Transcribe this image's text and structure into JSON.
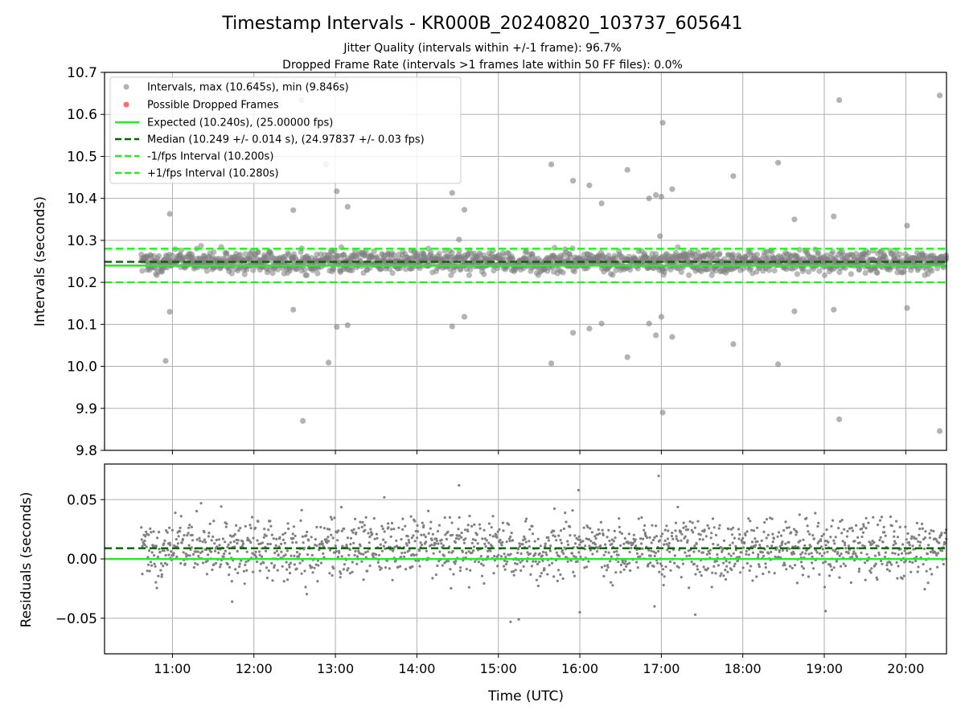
{
  "title": "Timestamp Intervals - KR000B_20240820_103737_605641",
  "subtitle_1": "Jitter Quality (intervals within +/-1 frame): 96.7%",
  "subtitle_2": "Dropped Frame Rate (intervals >1 frames late within 50 FF files): 0.0%",
  "colors": {
    "points": "#808080",
    "dropped": "#ff6060",
    "expected": "#22ee22",
    "median": "#006400",
    "fps_bounds": "#22ee22",
    "grid": "#b0b0b0"
  },
  "legend": {
    "intervals": "Intervals, max (10.645s), min (9.846s)",
    "dropped": "Possible Dropped Frames",
    "expected": "Expected (10.240s), (25.00000 fps)",
    "median": "Median (10.249 +/- 0.014 s), (24.97837 +/- 0.03 fps)",
    "minus_fps": "-1/fps Interval (10.200s)",
    "plus_fps": "+1/fps Interval (10.280s)"
  },
  "chart_data": [
    {
      "type": "scatter",
      "panel": "intervals",
      "ylabel": "Intervals (seconds)",
      "ylim": [
        9.8,
        10.7
      ],
      "yticks": [
        "9.8",
        "9.9",
        "10.0",
        "10.1",
        "10.2",
        "10.3",
        "10.4",
        "10.5",
        "10.6",
        "10.7"
      ],
      "xlim": [
        "10:10",
        "20:30"
      ],
      "grid": true,
      "legend_position": "upper-left",
      "expected": 10.24,
      "median": 10.249,
      "lower_bound": 10.2,
      "upper_bound": 10.28,
      "bulk_band": [
        10.22,
        10.28
      ],
      "data_range": [
        "10:37",
        "20:30"
      ],
      "outliers": [
        {
          "x": "10:55",
          "y": 10.013
        },
        {
          "x": "10:58",
          "y": 10.363
        },
        {
          "x": "10:58",
          "y": 10.13
        },
        {
          "x": "12:29",
          "y": 10.372
        },
        {
          "x": "12:29",
          "y": 10.135
        },
        {
          "x": "12:35",
          "y": 10.634
        },
        {
          "x": "12:36",
          "y": 9.87
        },
        {
          "x": "12:53",
          "y": 10.481
        },
        {
          "x": "12:55",
          "y": 10.009
        },
        {
          "x": "13:01",
          "y": 10.417
        },
        {
          "x": "13:01",
          "y": 10.094
        },
        {
          "x": "13:09",
          "y": 10.38
        },
        {
          "x": "13:09",
          "y": 10.098
        },
        {
          "x": "14:26",
          "y": 10.413
        },
        {
          "x": "14:26",
          "y": 10.095
        },
        {
          "x": "14:31",
          "y": 10.302
        },
        {
          "x": "14:35",
          "y": 10.373
        },
        {
          "x": "14:35",
          "y": 10.118
        },
        {
          "x": "15:39",
          "y": 10.481
        },
        {
          "x": "15:39",
          "y": 10.007
        },
        {
          "x": "15:55",
          "y": 10.442
        },
        {
          "x": "15:55",
          "y": 10.08
        },
        {
          "x": "16:07",
          "y": 10.431
        },
        {
          "x": "16:07",
          "y": 10.09
        },
        {
          "x": "16:16",
          "y": 10.388
        },
        {
          "x": "16:16",
          "y": 10.102
        },
        {
          "x": "16:35",
          "y": 10.468
        },
        {
          "x": "16:35",
          "y": 10.022
        },
        {
          "x": "16:51",
          "y": 10.4
        },
        {
          "x": "16:51",
          "y": 10.102
        },
        {
          "x": "16:56",
          "y": 10.408
        },
        {
          "x": "16:56",
          "y": 10.074
        },
        {
          "x": "16:59",
          "y": 10.31
        },
        {
          "x": "17:00",
          "y": 10.404
        },
        {
          "x": "17:00",
          "y": 10.118
        },
        {
          "x": "17:01",
          "y": 10.58
        },
        {
          "x": "17:01",
          "y": 9.89
        },
        {
          "x": "17:08",
          "y": 10.422
        },
        {
          "x": "17:08",
          "y": 10.07
        },
        {
          "x": "17:53",
          "y": 10.453
        },
        {
          "x": "17:53",
          "y": 10.053
        },
        {
          "x": "18:26",
          "y": 10.485
        },
        {
          "x": "18:26",
          "y": 10.005
        },
        {
          "x": "18:38",
          "y": 10.35
        },
        {
          "x": "18:38",
          "y": 10.131
        },
        {
          "x": "19:07",
          "y": 10.357
        },
        {
          "x": "19:07",
          "y": 10.135
        },
        {
          "x": "19:11",
          "y": 10.634
        },
        {
          "x": "19:11",
          "y": 9.874
        },
        {
          "x": "20:01",
          "y": 10.335
        },
        {
          "x": "20:01",
          "y": 10.139
        },
        {
          "x": "20:25",
          "y": 10.645
        },
        {
          "x": "20:25",
          "y": 9.846
        }
      ]
    },
    {
      "type": "scatter",
      "panel": "residuals",
      "ylabel": "Residuals (seconds)",
      "xlabel": "Time (UTC)",
      "ylim": [
        -0.08,
        0.08
      ],
      "yticks": [
        "−0.05",
        "0.00",
        "0.05"
      ],
      "xticks": [
        "11:00",
        "12:00",
        "13:00",
        "14:00",
        "15:00",
        "16:00",
        "17:00",
        "18:00",
        "19:00",
        "20:00"
      ],
      "xlim": [
        "10:10",
        "20:30"
      ],
      "grid": true,
      "zero_line": 0.0,
      "median_line": 0.009,
      "bulk_band": [
        -0.02,
        0.04
      ],
      "data_range": [
        "10:37",
        "20:30"
      ],
      "outliers": [
        {
          "x": "14:31",
          "y": 0.062
        },
        {
          "x": "15:09",
          "y": -0.053
        },
        {
          "x": "15:15",
          "y": -0.051
        },
        {
          "x": "15:59",
          "y": 0.058
        },
        {
          "x": "16:00",
          "y": -0.045
        },
        {
          "x": "16:58",
          "y": 0.07
        },
        {
          "x": "17:25",
          "y": -0.047
        },
        {
          "x": "19:01",
          "y": -0.044
        },
        {
          "x": "11:44",
          "y": -0.036
        },
        {
          "x": "13:36",
          "y": 0.052
        },
        {
          "x": "16:55",
          "y": -0.04
        }
      ]
    }
  ]
}
